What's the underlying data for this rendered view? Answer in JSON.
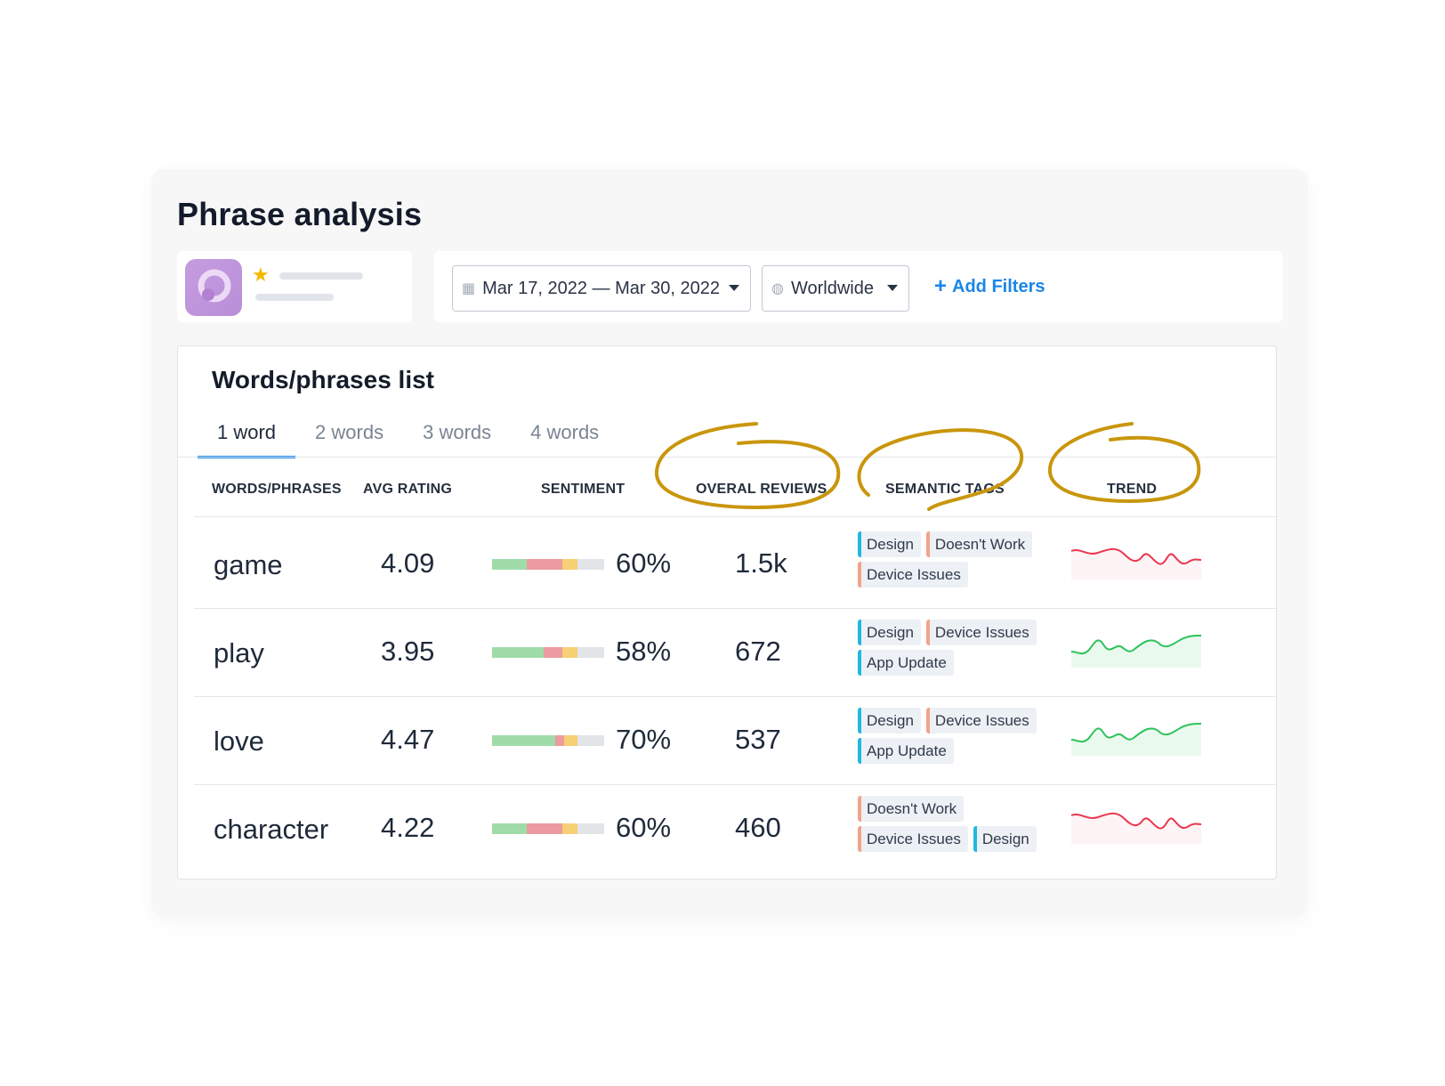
{
  "page": {
    "title": "Phrase analysis"
  },
  "app": {
    "icon": "app-logo-icon",
    "rating_icon": "star-icon"
  },
  "filters": {
    "date_range": "Mar 17, 2022 — Mar 30, 2022",
    "region": "Worldwide",
    "add_filters": "Add Filters",
    "calendar_icon": "calendar-icon",
    "globe_icon": "globe-icon"
  },
  "panel": {
    "title": "Words/phrases list",
    "tabs": [
      {
        "label": "1 word",
        "active": true
      },
      {
        "label": "2 words",
        "active": false
      },
      {
        "label": "3 words",
        "active": false
      },
      {
        "label": "4 words",
        "active": false
      }
    ],
    "columns": {
      "words": "WORDS/PHRASES",
      "rating": "AVG RATING",
      "sentiment": "SENTIMENT",
      "reviews": "OVERAL REVIEWS",
      "tags": "SEMANTIC TAGS",
      "trend": "TREND"
    }
  },
  "colors": {
    "accent": "#1a86e8",
    "positive": "#9fdcaa",
    "negative": "#ec9ba1",
    "neutral": "#f5d074",
    "empty": "#e2e4e8",
    "tag_design": "#22b8e0",
    "tag_issue": "#f0a48a",
    "trend_up": "#2fc25b",
    "trend_down": "#e8384f",
    "annotation": "#c9960c"
  },
  "rows": [
    {
      "word": "game",
      "rating": "4.09",
      "sentiment_pct": "60%",
      "reviews": "1.5k",
      "sentiment_split": {
        "positive": 0.31,
        "negative": 0.32,
        "neutral": 0.13
      },
      "tags": [
        {
          "label": "Design",
          "kind": "design"
        },
        {
          "label": "Doesn't Work",
          "kind": "issue"
        },
        {
          "label": "Device Issues",
          "kind": "issue"
        }
      ],
      "trend": "down"
    },
    {
      "word": "play",
      "rating": "3.95",
      "sentiment_pct": "58%",
      "reviews": "672",
      "sentiment_split": {
        "positive": 0.46,
        "negative": 0.17,
        "neutral": 0.13
      },
      "tags": [
        {
          "label": "Design",
          "kind": "design"
        },
        {
          "label": "Device Issues",
          "kind": "issue"
        },
        {
          "label": "App Update",
          "kind": "design"
        }
      ],
      "trend": "up"
    },
    {
      "word": "love",
      "rating": "4.47",
      "sentiment_pct": "70%",
      "reviews": "537",
      "sentiment_split": {
        "positive": 0.56,
        "negative": 0.08,
        "neutral": 0.12
      },
      "tags": [
        {
          "label": "Design",
          "kind": "design"
        },
        {
          "label": "Device Issues",
          "kind": "issue"
        },
        {
          "label": "App Update",
          "kind": "design"
        }
      ],
      "trend": "up"
    },
    {
      "word": "character",
      "rating": "4.22",
      "sentiment_pct": "60%",
      "reviews": "460",
      "sentiment_split": {
        "positive": 0.31,
        "negative": 0.32,
        "neutral": 0.13
      },
      "tags": [
        {
          "label": "Doesn't Work",
          "kind": "issue"
        },
        {
          "label": "Device Issues",
          "kind": "issue"
        },
        {
          "label": "Design",
          "kind": "design"
        }
      ],
      "trend": "down"
    }
  ]
}
